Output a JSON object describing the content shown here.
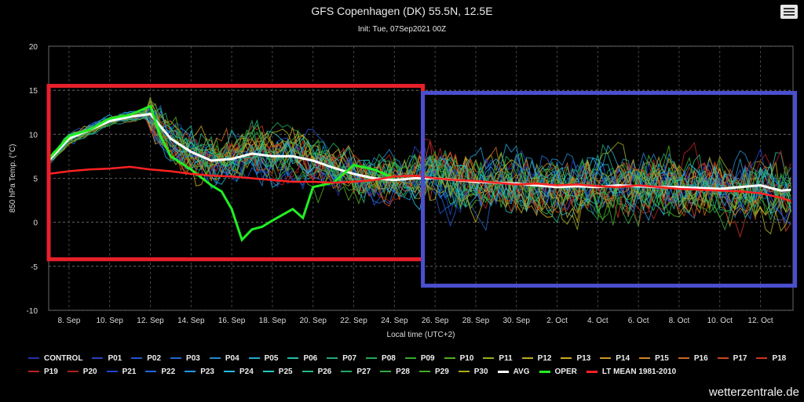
{
  "header": {
    "title": "GFS Copenhagen (DK) 55.5N, 12.5E",
    "subtitle": "Init: Tue, 07Sep2021 00Z",
    "menu_icon": "hamburger-menu-icon"
  },
  "credits": "wetterzentrale.de",
  "chart_data": {
    "type": "line",
    "ylabel": "850 hPa Temp. (°C)",
    "xlabel": "Local time (UTC+2)",
    "ylim": [
      -10,
      20
    ],
    "yticks": [
      -10,
      -5,
      0,
      5,
      10,
      15,
      20
    ],
    "x_range_days": [
      7.0,
      43.6
    ],
    "xticks": [
      {
        "day": 8,
        "label": "8. Sep"
      },
      {
        "day": 10,
        "label": "10. Sep"
      },
      {
        "day": 12,
        "label": "12. Sep"
      },
      {
        "day": 14,
        "label": "14. Sep"
      },
      {
        "day": 16,
        "label": "16. Sep"
      },
      {
        "day": 18,
        "label": "18. Sep"
      },
      {
        "day": 20,
        "label": "20. Sep"
      },
      {
        "day": 22,
        "label": "22. Sep"
      },
      {
        "day": 24,
        "label": "24. Sep"
      },
      {
        "day": 26,
        "label": "26. Sep"
      },
      {
        "day": 28,
        "label": "28. Sep"
      },
      {
        "day": 30,
        "label": "30. Sep"
      },
      {
        "day": 32,
        "label": "2. Oct"
      },
      {
        "day": 34,
        "label": "4. Oct"
      },
      {
        "day": 36,
        "label": "6. Oct"
      },
      {
        "day": 38,
        "label": "8. Oct"
      },
      {
        "day": 40,
        "label": "10. Oct"
      },
      {
        "day": 42,
        "label": "12. Oct"
      }
    ],
    "grid": true,
    "legend_position": "bottom",
    "series": [
      {
        "name": "AVG",
        "color": "#ffffff",
        "x": [
          7.0,
          8.0,
          9.0,
          10.0,
          11.0,
          12.0,
          13.0,
          14.0,
          15.0,
          16.0,
          17.0,
          18.0,
          19.0,
          20.0,
          21.0,
          22.0,
          23.0,
          24.0,
          25.0,
          26.0,
          27.0,
          28.0,
          29.0,
          30.0,
          31.0,
          32.0,
          33.0,
          34.0,
          35.0,
          36.0,
          37.0,
          38.0,
          39.0,
          40.0,
          41.0,
          42.0,
          43.0,
          43.5
        ],
        "values": [
          7.0,
          9.5,
          10.5,
          11.5,
          12.0,
          12.3,
          9.5,
          8.0,
          7.0,
          7.2,
          7.8,
          7.5,
          7.5,
          7.0,
          6.2,
          5.5,
          5.0,
          4.8,
          5.0,
          5.0,
          4.8,
          4.6,
          4.5,
          4.4,
          4.2,
          4.0,
          4.1,
          4.0,
          4.2,
          4.1,
          4.0,
          4.0,
          3.9,
          3.8,
          4.0,
          4.2,
          3.6,
          3.7
        ]
      },
      {
        "name": "OPER",
        "color": "#22ee22",
        "x": [
          7.0,
          8.0,
          9.0,
          10.0,
          11.0,
          12.0,
          12.5,
          13.0,
          14.0,
          15.0,
          15.5,
          16.0,
          16.5,
          17.0,
          17.5,
          18.0,
          19.0,
          19.5,
          20.0,
          21.0,
          22.0,
          23.0,
          24.0
        ],
        "values": [
          7.2,
          9.8,
          10.5,
          11.8,
          12.2,
          13.2,
          9.8,
          7.5,
          6.0,
          4.2,
          3.5,
          1.5,
          -2.0,
          -0.8,
          -0.5,
          0.2,
          1.5,
          0.5,
          4.0,
          4.5,
          6.5,
          6.0,
          5.0
        ]
      },
      {
        "name": "LT MEAN 1981-2010",
        "color": "#ff2222",
        "x": [
          7.0,
          8.0,
          9.0,
          10.0,
          11.0,
          12.0,
          13.0,
          14.0,
          15.0,
          16.0,
          17.0,
          18.0,
          19.0,
          20.0,
          21.0,
          22.0,
          23.0,
          24.0,
          25.0,
          26.0,
          27.0,
          28.0,
          29.0,
          30.0,
          31.0,
          32.0,
          33.0,
          34.0,
          35.0,
          36.0,
          37.0,
          38.0,
          39.0,
          40.0,
          41.0,
          42.0,
          43.0,
          43.5
        ],
        "values": [
          5.5,
          5.8,
          6.0,
          6.1,
          6.3,
          6.0,
          5.8,
          5.5,
          5.3,
          5.2,
          5.0,
          4.8,
          4.6,
          4.6,
          4.5,
          4.6,
          4.8,
          5.2,
          5.3,
          5.0,
          4.8,
          4.7,
          4.5,
          4.3,
          4.4,
          4.2,
          4.3,
          4.1,
          4.0,
          4.2,
          4.0,
          3.8,
          3.7,
          3.6,
          3.5,
          3.3,
          2.8,
          2.4
        ]
      }
    ],
    "legend": [
      {
        "name": "CONTROL",
        "color": "#2233aa"
      },
      {
        "name": "P01",
        "color": "#2244bb"
      },
      {
        "name": "P02",
        "color": "#2255cc"
      },
      {
        "name": "P03",
        "color": "#2266cc"
      },
      {
        "name": "P04",
        "color": "#2288cc"
      },
      {
        "name": "P05",
        "color": "#22aacc"
      },
      {
        "name": "P06",
        "color": "#22bbaa"
      },
      {
        "name": "P07",
        "color": "#22aa77"
      },
      {
        "name": "P08",
        "color": "#22aa55"
      },
      {
        "name": "P09",
        "color": "#33aa33"
      },
      {
        "name": "P10",
        "color": "#55aa22"
      },
      {
        "name": "P11",
        "color": "#99aa22"
      },
      {
        "name": "P12",
        "color": "#bbaa22"
      },
      {
        "name": "P13",
        "color": "#ccaa22"
      },
      {
        "name": "P14",
        "color": "#cc9922"
      },
      {
        "name": "P15",
        "color": "#cc8822"
      },
      {
        "name": "P16",
        "color": "#cc6622"
      },
      {
        "name": "P17",
        "color": "#cc4422"
      },
      {
        "name": "P18",
        "color": "#cc3322"
      },
      {
        "name": "P19",
        "color": "#bb2222"
      },
      {
        "name": "P20",
        "color": "#aa2222"
      },
      {
        "name": "P21",
        "color": "#2244cc"
      },
      {
        "name": "P22",
        "color": "#2266dd"
      },
      {
        "name": "P23",
        "color": "#2299dd"
      },
      {
        "name": "P24",
        "color": "#22bbdd"
      },
      {
        "name": "P25",
        "color": "#22ccbb"
      },
      {
        "name": "P26",
        "color": "#22bb88"
      },
      {
        "name": "P27",
        "color": "#22aa66"
      },
      {
        "name": "P28",
        "color": "#33aa44"
      },
      {
        "name": "P29",
        "color": "#44aa22"
      },
      {
        "name": "P30",
        "color": "#aaaa22"
      },
      {
        "name": "AVG",
        "color": "#ffffff",
        "thick": true
      },
      {
        "name": "OPER",
        "color": "#22ee22",
        "thick": true
      },
      {
        "name": "LT MEAN 1981-2010",
        "color": "#ff2222",
        "thick": true
      }
    ],
    "highlight_boxes": [
      {
        "color": "#e8202a",
        "x_days": [
          7.0,
          25.4
        ],
        "y": [
          -4.2,
          15.5
        ]
      },
      {
        "color": "#4a4fd0",
        "x_days": [
          25.4,
          43.7
        ],
        "y": [
          -7.2,
          14.7
        ]
      }
    ]
  }
}
